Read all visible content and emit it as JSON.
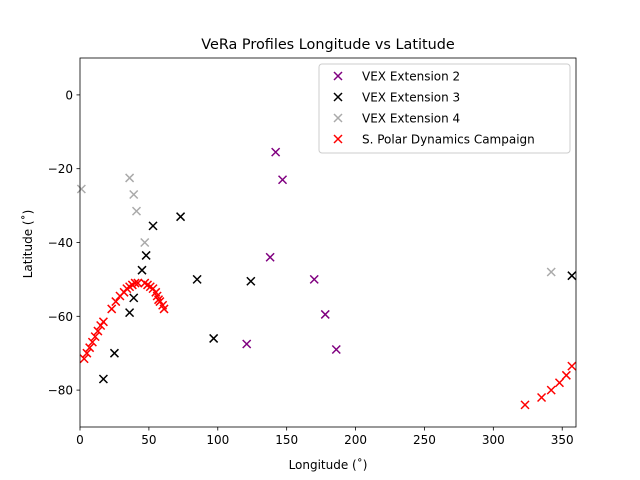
{
  "chart_data": {
    "type": "scatter",
    "title": "VeRa Profiles Longitude vs Latitude",
    "xlabel": "Longitude (˚)",
    "ylabel": "Latitude (˚)",
    "xlim": [
      0,
      360
    ],
    "ylim": [
      -90,
      10
    ],
    "xticks": [
      0,
      50,
      100,
      150,
      200,
      250,
      300,
      350
    ],
    "yticks": [
      0,
      -20,
      -40,
      -60,
      -80
    ],
    "grid": false,
    "legend_position": "top-right",
    "marker": "x",
    "series": [
      {
        "name": "VEX Extension 2",
        "color": "#800080",
        "points": [
          [
            142,
            -15.5
          ],
          [
            147,
            -23
          ],
          [
            138,
            -44
          ],
          [
            170,
            -50
          ],
          [
            178,
            -59.5
          ],
          [
            186,
            -69
          ],
          [
            121,
            -67.5
          ]
        ]
      },
      {
        "name": "VEX Extension 3",
        "color": "#000000",
        "points": [
          [
            73,
            -33
          ],
          [
            53,
            -35.5
          ],
          [
            48,
            -43.5
          ],
          [
            45,
            -47.5
          ],
          [
            39,
            -55
          ],
          [
            36,
            -59
          ],
          [
            85,
            -50
          ],
          [
            97,
            -66
          ],
          [
            124,
            -50.5
          ],
          [
            357,
            -49
          ],
          [
            25,
            -70
          ],
          [
            17,
            -77
          ]
        ]
      },
      {
        "name": "VEX Extension 4",
        "color": "#aaaaaa",
        "points": [
          [
            1,
            -25.5
          ],
          [
            36,
            -22.5
          ],
          [
            39,
            -27
          ],
          [
            41,
            -31.5
          ],
          [
            47,
            -40
          ],
          [
            342,
            -48
          ]
        ]
      },
      {
        "name": "S. Polar Dynamics Campaign",
        "color": "#ff0000",
        "points": [
          [
            3,
            -71.5
          ],
          [
            5,
            -70
          ],
          [
            7,
            -68.5
          ],
          [
            9,
            -67
          ],
          [
            11,
            -65.5
          ],
          [
            13,
            -64
          ],
          [
            15,
            -62.5
          ],
          [
            17,
            -61.5
          ],
          [
            23,
            -58
          ],
          [
            26,
            -56
          ],
          [
            29,
            -54.5
          ],
          [
            32,
            -53.5
          ],
          [
            34,
            -52.5
          ],
          [
            36,
            -52
          ],
          [
            38,
            -51.5
          ],
          [
            40,
            -51
          ],
          [
            42,
            -51
          ],
          [
            47,
            -51
          ],
          [
            49,
            -51.5
          ],
          [
            51,
            -52
          ],
          [
            53,
            -52.5
          ],
          [
            55,
            -53.5
          ],
          [
            56,
            -54.5
          ],
          [
            57,
            -55.5
          ],
          [
            58,
            -56
          ],
          [
            60,
            -57
          ],
          [
            61,
            -58
          ],
          [
            323,
            -84
          ],
          [
            335,
            -82
          ],
          [
            342,
            -80
          ],
          [
            348,
            -78
          ],
          [
            353,
            -76
          ],
          [
            357,
            -73.5
          ]
        ]
      }
    ]
  }
}
